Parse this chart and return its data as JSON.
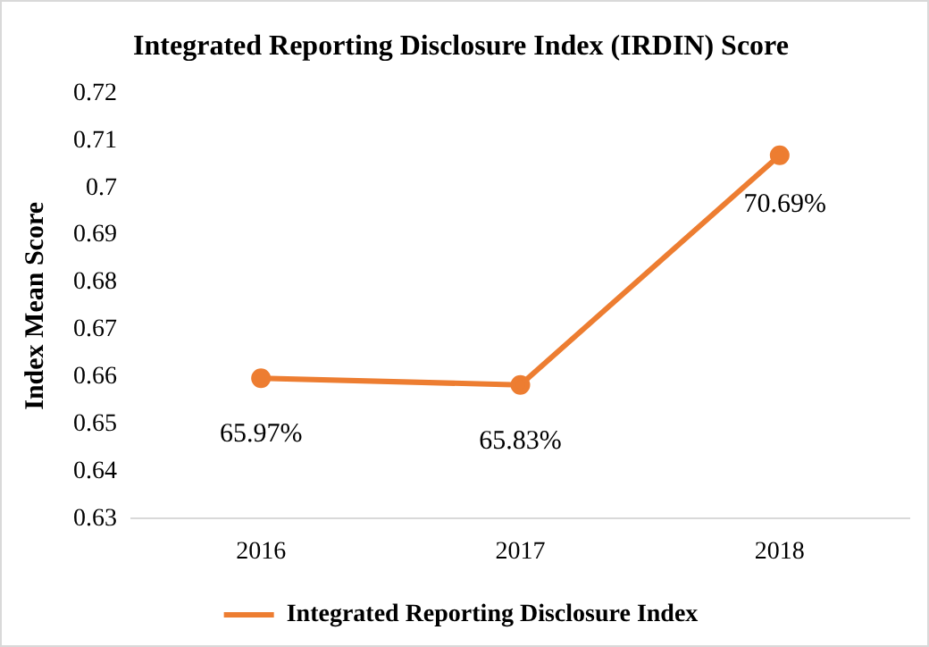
{
  "chart_data": {
    "type": "line",
    "title": "Integrated Reporting Disclosure Index (IRDIN) Score",
    "ylabel": "Index Mean Score",
    "categories": [
      "2016",
      "2017",
      "2018"
    ],
    "series": [
      {
        "name": "Integrated Reporting Disclosure Index",
        "color": "#ed7d31",
        "values": [
          0.6597,
          0.6583,
          0.7069
        ],
        "value_labels": [
          "65.97%",
          "65.83%",
          "70.69%"
        ]
      }
    ],
    "ylim": [
      0.63,
      0.72
    ],
    "yticks": [
      0.63,
      0.64,
      0.65,
      0.66,
      0.67,
      0.68,
      0.69,
      0.7,
      0.71,
      0.72
    ],
    "grid": false,
    "legend": "bottom",
    "marker": "circle",
    "line_style": "solid"
  }
}
